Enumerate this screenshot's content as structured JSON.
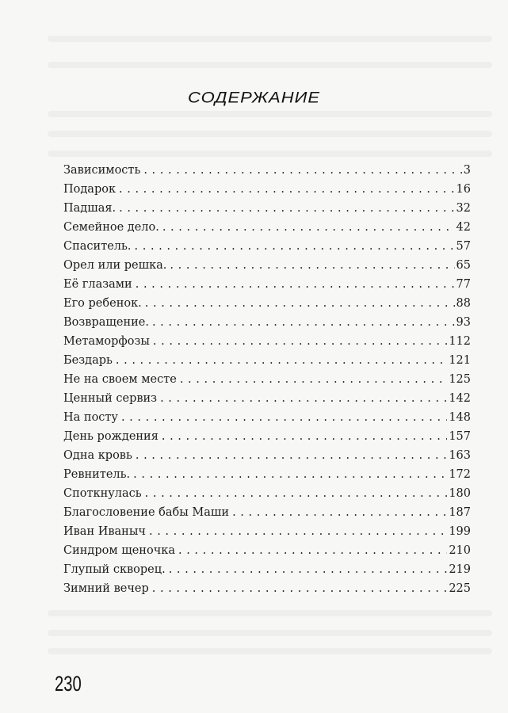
{
  "title": "СОДЕРЖАНИЕ",
  "entries": [
    {
      "name": "Зависимость",
      "page": "3"
    },
    {
      "name": "Подарок",
      "page": "16"
    },
    {
      "name": "Падшая.",
      "page": "32"
    },
    {
      "name": "Семейное дело.",
      "page": "42"
    },
    {
      "name": "Спаситель.",
      "page": "57"
    },
    {
      "name": "Орел или решка.",
      "page": "65"
    },
    {
      "name": "Её глазами",
      "page": "77"
    },
    {
      "name": "Его ребенок.",
      "page": "88"
    },
    {
      "name": "Возвращение.",
      "page": "93"
    },
    {
      "name": "Метаморфозы",
      "page": "112"
    },
    {
      "name": "Бездарь",
      "page": "121"
    },
    {
      "name": "Не на своем месте",
      "page": "125"
    },
    {
      "name": "Ценный сервиз",
      "page": "142"
    },
    {
      "name": "На посту",
      "page": "148"
    },
    {
      "name": "День рождения",
      "page": "157"
    },
    {
      "name": "Одна кровь",
      "page": "163"
    },
    {
      "name": "Ревнитель.",
      "page": "172"
    },
    {
      "name": "Споткнулась",
      "page": "180"
    },
    {
      "name": "Благословение бабы Маши",
      "page": "187"
    },
    {
      "name": "Иван Иваныч",
      "page": "199"
    },
    {
      "name": "Синдром щеночка",
      "page": "210"
    },
    {
      "name": "Глупый скворец.",
      "page": "219"
    },
    {
      "name": "Зимний вечер",
      "page": "225"
    }
  ],
  "page_number": "230"
}
